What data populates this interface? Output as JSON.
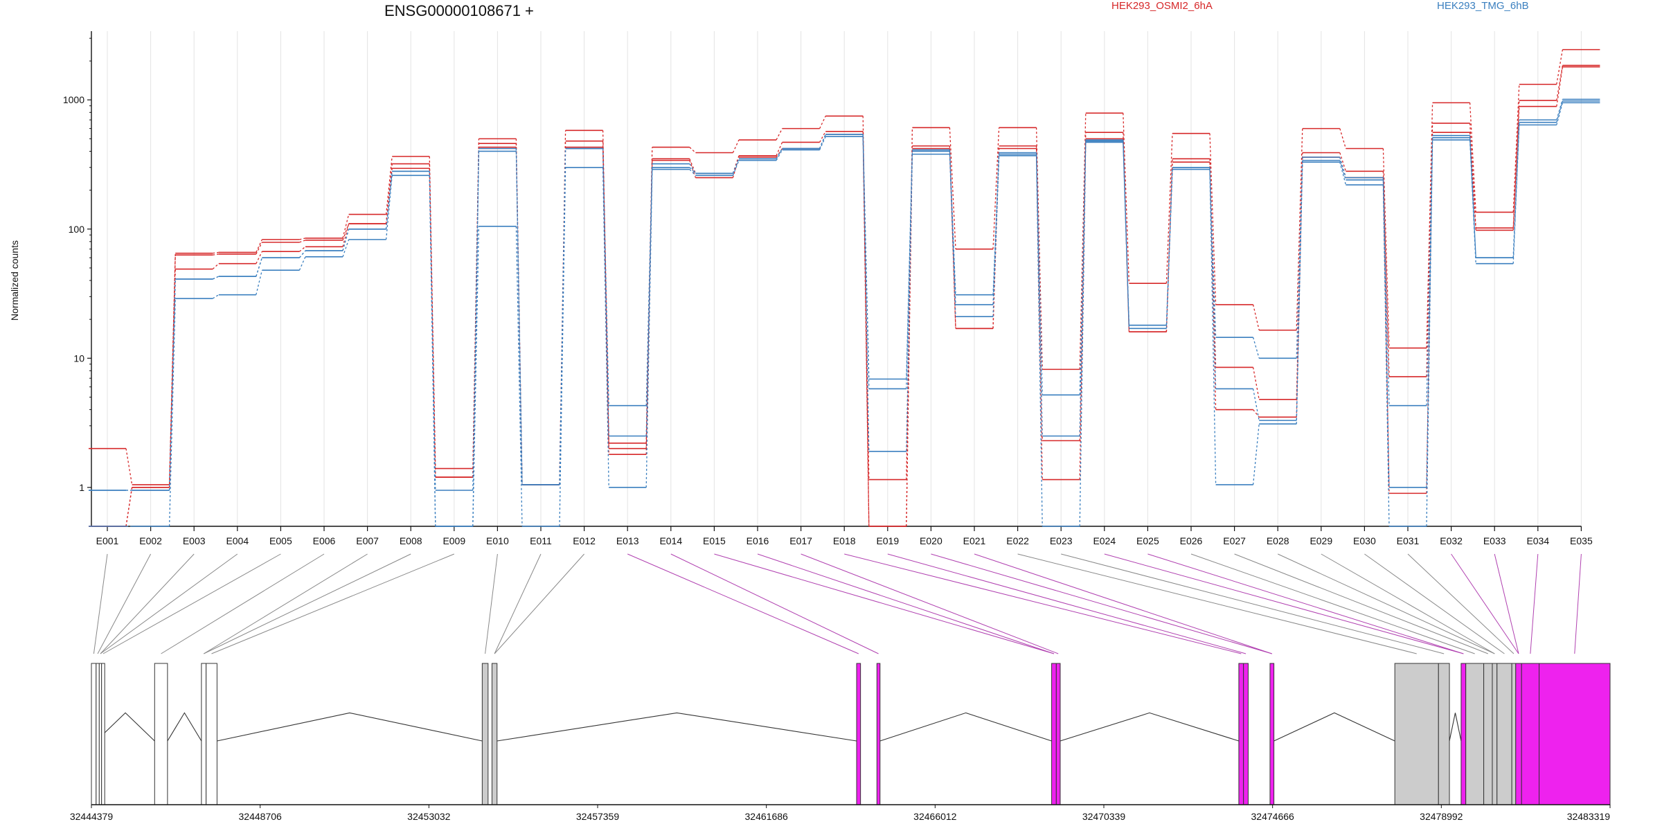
{
  "chart_data": {
    "type": "line",
    "title": "ENSG00000108671 +",
    "ylabel": "Normalized counts",
    "yscale": "log",
    "ylim": [
      0.5,
      3200
    ],
    "yticks": [
      1,
      10,
      100,
      1000
    ],
    "ytick_labels": [
      "1",
      "10",
      "100",
      "1000"
    ],
    "grid": "vertical",
    "legend": [
      {
        "name": "HEK293_OSMI2_6hA",
        "color": "#d62728"
      },
      {
        "name": "HEK293_TMG_6hB",
        "color": "#3a7fbf"
      }
    ],
    "categories": [
      "E001",
      "E002",
      "E003",
      "E004",
      "E005",
      "E006",
      "E007",
      "E008",
      "E009",
      "E010",
      "E011",
      "E012",
      "E013",
      "E014",
      "E015",
      "E016",
      "E017",
      "E018",
      "E019",
      "E020",
      "E021",
      "E022",
      "E023",
      "E024",
      "E025",
      "E026",
      "E027",
      "E028",
      "E029",
      "E030",
      "E031",
      "E032",
      "E033",
      "E034",
      "E035"
    ],
    "series": [
      {
        "group": "HEK293_OSMI2_6hA",
        "values": [
          2.0,
          1.05,
          65,
          66,
          83,
          85,
          130,
          365,
          1.4,
          500,
          1.05,
          580,
          2.2,
          430,
          390,
          490,
          600,
          750,
          0.5,
          610,
          70,
          610,
          8.2,
          790,
          38,
          550,
          26,
          16.5,
          600,
          420,
          12,
          950,
          135,
          1320,
          2450
        ]
      },
      {
        "group": "HEK293_OSMI2_6hA",
        "values": [
          0.5,
          1.0,
          63,
          64,
          79,
          82,
          110,
          320,
          1.2,
          460,
          1.05,
          480,
          2.0,
          350,
          270,
          370,
          470,
          570,
          1.15,
          440,
          17,
          440,
          2.3,
          560,
          16,
          350,
          8.5,
          4.8,
          390,
          280,
          7.2,
          660,
          102,
          990,
          1850
        ]
      },
      {
        "group": "HEK293_OSMI2_6hA",
        "values": [
          0.5,
          1.0,
          49,
          54,
          67,
          73,
          110,
          295,
          1.2,
          430,
          1.05,
          430,
          1.8,
          340,
          250,
          360,
          420,
          540,
          0.5,
          420,
          17,
          420,
          1.15,
          500,
          16,
          330,
          4.0,
          3.5,
          360,
          250,
          0.9,
          560,
          98,
          890,
          1800
        ]
      },
      {
        "group": "HEK293_TMG_6hB",
        "values": [
          0.95,
          0.95,
          41,
          43,
          60,
          68,
          100,
          280,
          0.5,
          420,
          1.05,
          420,
          4.3,
          320,
          270,
          350,
          420,
          540,
          6.9,
          410,
          31,
          390,
          5.2,
          490,
          18,
          300,
          14.5,
          10,
          360,
          250,
          4.3,
          530,
          60,
          700,
          1010
        ]
      },
      {
        "group": "HEK293_TMG_6hB",
        "values": [
          0.95,
          0.95,
          41,
          43,
          60,
          68,
          100,
          280,
          0.95,
          400,
          1.05,
          420,
          2.5,
          300,
          270,
          350,
          420,
          540,
          5.8,
          400,
          26,
          380,
          2.5,
          480,
          18,
          300,
          5.8,
          3.3,
          340,
          240,
          1.0,
          510,
          60,
          670,
          980
        ]
      },
      {
        "group": "HEK293_TMG_6hB",
        "values": [
          0.5,
          0.5,
          29,
          31,
          48,
          61,
          83,
          260,
          0.5,
          105,
          0.5,
          300,
          1.0,
          290,
          260,
          340,
          410,
          520,
          1.9,
          380,
          21,
          370,
          0.5,
          470,
          17,
          290,
          1.05,
          3.1,
          330,
          220,
          0.5,
          490,
          54,
          640,
          950
        ]
      }
    ],
    "gene_model": {
      "xlim": [
        32444379,
        32483319
      ],
      "coord_ticks": [
        "32444379",
        "32448706",
        "32453032",
        "32457359",
        "32461686",
        "32466012",
        "32470339",
        "32474666",
        "32478992",
        "32483319"
      ]
    }
  }
}
